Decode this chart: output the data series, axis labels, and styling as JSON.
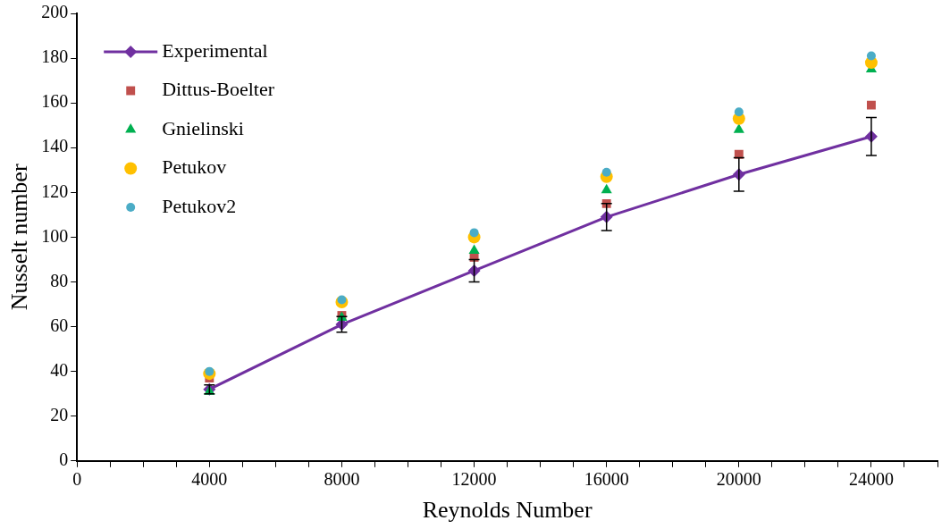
{
  "chart_data": {
    "type": "scatter",
    "xlabel": "Reynolds Number",
    "ylabel": "Nusselt number",
    "x": [
      4000,
      8000,
      12000,
      16000,
      20000,
      24000
    ],
    "xlim": [
      0,
      26000
    ],
    "xticks": [
      0,
      {
        "value": 1000,
        "label": null
      },
      {
        "value": 2000,
        "label": null
      },
      {
        "value": 3000,
        "label": null
      },
      4000,
      {
        "value": 5000,
        "label": null
      },
      {
        "value": 6000,
        "label": null
      },
      {
        "value": 7000,
        "label": null
      },
      8000,
      {
        "value": 9000,
        "label": null
      },
      {
        "value": 10000,
        "label": null
      },
      {
        "value": 11000,
        "label": null
      },
      12000,
      {
        "value": 13000,
        "label": null
      },
      {
        "value": 14000,
        "label": null
      },
      {
        "value": 15000,
        "label": null
      },
      16000,
      {
        "value": 17000,
        "label": null
      },
      {
        "value": 18000,
        "label": null
      },
      {
        "value": 19000,
        "label": null
      },
      20000,
      {
        "value": 21000,
        "label": null
      },
      {
        "value": 22000,
        "label": null
      },
      {
        "value": 23000,
        "label": null
      },
      24000,
      {
        "value": 25000,
        "label": null
      },
      {
        "value": 26000,
        "label": null
      }
    ],
    "ylim": [
      0,
      200
    ],
    "yticks": [
      0,
      20,
      40,
      60,
      80,
      100,
      120,
      140,
      160,
      180,
      200
    ],
    "grid": false,
    "legend": "top left",
    "series": [
      {
        "name": "Experimental",
        "type": "line",
        "marker": "diamond",
        "line_style": "solid",
        "color": "#7030a0",
        "values": [
          32,
          61,
          85,
          109,
          128,
          145
        ],
        "errors": [
          2,
          3.5,
          5,
          6,
          7.5,
          8.5
        ]
      },
      {
        "name": "Dittus-Boelter",
        "marker": "square",
        "color": "#c0504d",
        "values": [
          37,
          65,
          91,
          115,
          137,
          159
        ]
      },
      {
        "name": "Gnielinski",
        "marker": "triangle",
        "color": "#00b050",
        "values": [
          31,
          64,
          94,
          121,
          148,
          175
        ]
      },
      {
        "name": "Petukov",
        "marker": "circle",
        "color": "#ffc000",
        "values": [
          39,
          71,
          100,
          127,
          153,
          178
        ]
      },
      {
        "name": "Petukov2",
        "marker": "circle",
        "color": "#4bacc6",
        "values": [
          40,
          72,
          102,
          129,
          156,
          181
        ]
      }
    ]
  }
}
